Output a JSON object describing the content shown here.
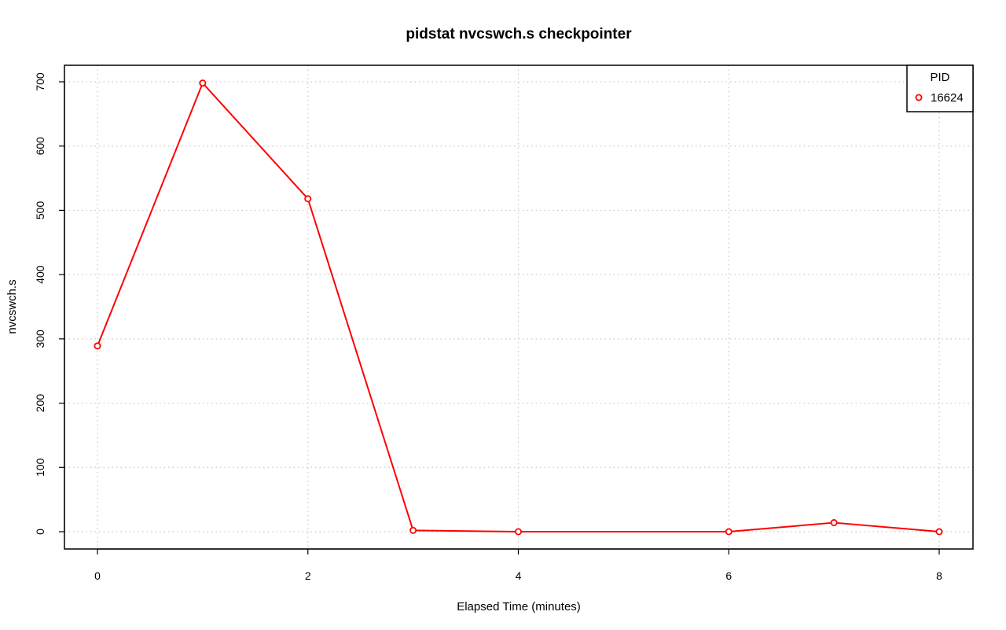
{
  "chart_data": {
    "type": "line",
    "title": "pidstat nvcswch.s checkpointer",
    "xlabel": "Elapsed Time (minutes)",
    "ylabel": "nvcswch.s",
    "xlim": [
      0,
      8
    ],
    "ylim": [
      0,
      700
    ],
    "x_ticks": [
      0,
      2,
      4,
      6,
      8
    ],
    "y_ticks": [
      0,
      100,
      200,
      300,
      400,
      500,
      600,
      700
    ],
    "grid": true,
    "legend": {
      "title": "PID",
      "placement": "top-right",
      "entries": [
        "16624"
      ]
    },
    "series": [
      {
        "name": "16624",
        "color": "#ff0000",
        "marker": "open-circle",
        "x": [
          0,
          1,
          2,
          3,
          4,
          6,
          7,
          8
        ],
        "y": [
          289,
          698,
          518,
          2,
          0,
          0,
          14,
          0
        ]
      }
    ]
  }
}
